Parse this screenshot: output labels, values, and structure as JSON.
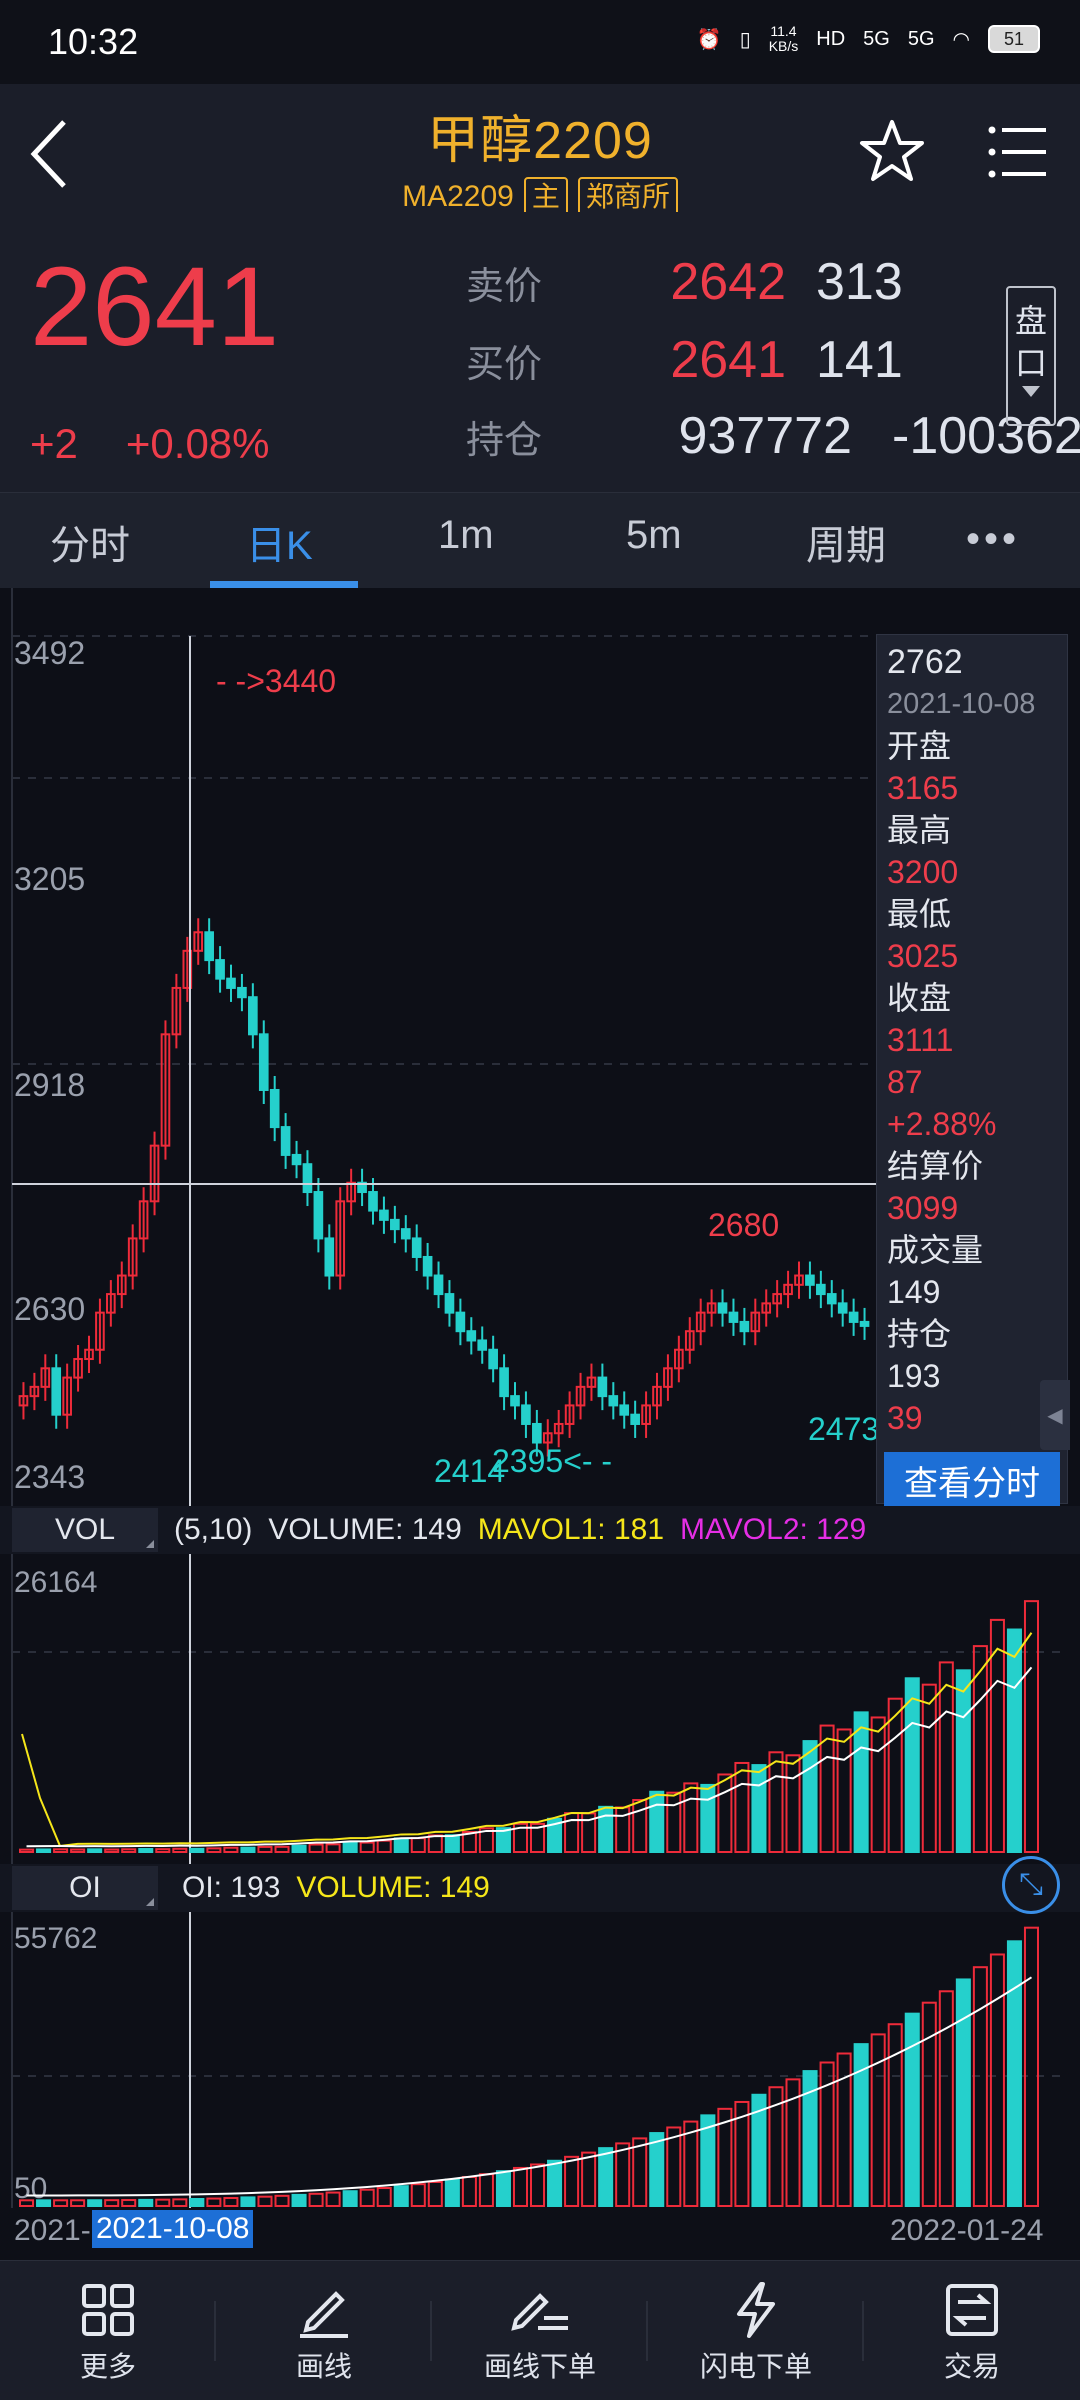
{
  "status_bar": {
    "time": "10:32",
    "net_speed_value": "11.4",
    "net_speed_unit": "KB/s",
    "hd_label": "HD",
    "signal1": "5G",
    "signal2": "5G",
    "battery": "51"
  },
  "header": {
    "title": "甲醇2209",
    "code": "MA2209",
    "main_tag": "主",
    "exchange": "郑商所"
  },
  "quote": {
    "last_price": "2641",
    "change": "+2",
    "change_pct": "+0.08%",
    "ask_label": "卖价",
    "ask_price": "2642",
    "ask_vol": "313",
    "bid_label": "买价",
    "bid_price": "2641",
    "bid_vol": "141",
    "oi_label": "持仓",
    "oi_value": "937772",
    "oi_change": "-100362",
    "pankou_label_1": "盘",
    "pankou_label_2": "口"
  },
  "tabs": {
    "items": [
      "分时",
      "日K",
      "1m",
      "5m",
      "周期"
    ],
    "active": "日K",
    "more": "•••"
  },
  "kline": {
    "y_ticks": [
      "3492",
      "3205",
      "2918",
      "2630",
      "2343"
    ],
    "annotations": {
      "high": "- ->3440",
      "low1": "2414",
      "low2": "2395<- -",
      "peak": "2680",
      "right_low": "2473"
    },
    "colors": {
      "up": "#ee2b3a",
      "down": "#25d0cc"
    }
  },
  "info_panel": {
    "price": "2762",
    "date": "2021-10-08",
    "open_label": "开盘",
    "open": "3165",
    "high_label": "最高",
    "high": "3200",
    "low_label": "最低",
    "low": "3025",
    "close_label": "收盘",
    "close": "3111",
    "change": "87",
    "change_pct": "+2.88%",
    "settle_label": "结算价",
    "settle": "3099",
    "volume_label": "成交量",
    "volume": "149",
    "oi_label": "持仓",
    "oi": "193",
    "oi_change": "39",
    "view_minute_btn": "查看分时"
  },
  "volume_panel": {
    "tab": "VOL",
    "params": "(5,10)",
    "volume": "VOLUME: 149",
    "mavol1": "MAVOL1: 181",
    "mavol2": "MAVOL2: 129",
    "y_max": "26164"
  },
  "oi_panel": {
    "tab": "OI",
    "oi": "OI: 193",
    "volume": "VOLUME: 149",
    "y_max": "55762",
    "y_min": "50"
  },
  "date_axis": {
    "left": "2021-",
    "selected": "2021-10-08",
    "right": "2022-01-24"
  },
  "bottom_nav": [
    "更多",
    "画线",
    "画线下单",
    "闪电下单",
    "交易"
  ]
}
